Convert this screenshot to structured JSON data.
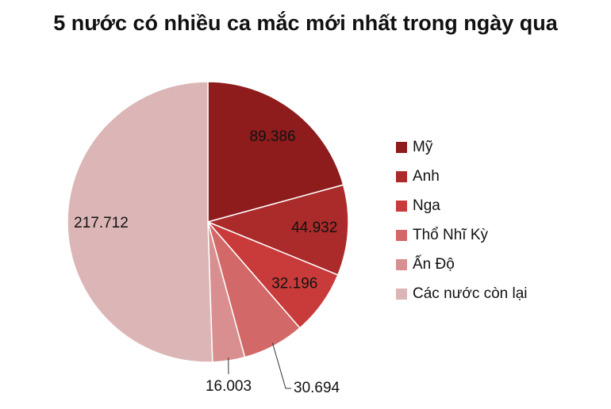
{
  "chart_data": {
    "type": "pie",
    "title": "5 nước có nhiều ca mắc mới nhất trong ngày qua",
    "categories": [
      "Mỹ",
      "Anh",
      "Nga",
      "Thổ Nhĩ Kỳ",
      "Ấn Độ",
      "Các nước còn lại"
    ],
    "values": [
      89386,
      44932,
      32196,
      30694,
      16003,
      217712
    ],
    "value_labels": [
      "89.386",
      "44.932",
      "32.196",
      "30.694",
      "16.003",
      "217.712"
    ],
    "colors": [
      "#8e1c1c",
      "#ab2a2a",
      "#c93b3b",
      "#d36868",
      "#d98f8f",
      "#dcb6b6"
    ],
    "legend": "right"
  }
}
